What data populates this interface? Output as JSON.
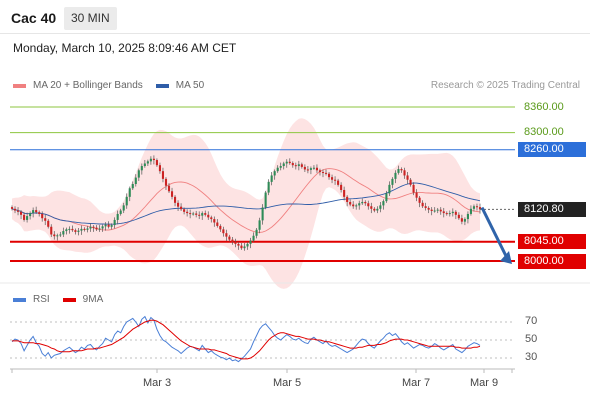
{
  "header": {
    "instrument": "Cac 40",
    "timeframe": "30 MIN"
  },
  "datetime": "Monday, March 10, 2025 8:09:46 AM CET",
  "legend": {
    "bollinger_label": "MA 20 + Bollinger Bands",
    "ma50_label": "MA 50",
    "credit": "Research © 2025 Trading Central"
  },
  "rsi_legend": {
    "rsi_label": "RSI",
    "ma_label": "9MA"
  },
  "colors": {
    "bollinger": "#f08080",
    "band_fill": "#fde3e3",
    "ma50": "#2f5da8",
    "resistance_green": "#8dc63f",
    "pivot_blue": "#2c6fd9",
    "support_red": "#e00000",
    "price_box": "#222222",
    "rsi": "#4a7fd6",
    "rsi_ma": "#e00000",
    "arrow": "#2f64aa",
    "candle_up": "#2e8b57",
    "candle_down": "#cc2222"
  },
  "chart_data": [
    {
      "type": "candlestick",
      "title": "",
      "ylim": [
        7960,
        8380
      ],
      "x_ticks": [
        "Mar 3",
        "Mar 5",
        "Mar 7",
        "Mar 9"
      ],
      "levels": [
        {
          "label": "8360.00",
          "value": 8360,
          "kind": "resistance"
        },
        {
          "label": "8300.00",
          "value": 8300,
          "kind": "resistance"
        },
        {
          "label": "8260.00",
          "value": 8260,
          "kind": "pivot"
        },
        {
          "label": "8045.00",
          "value": 8045,
          "kind": "support"
        },
        {
          "label": "8000.00",
          "value": 8000,
          "kind": "support"
        }
      ],
      "last_price": {
        "label": "8120.80",
        "value": 8120.8
      },
      "forecast_arrow": {
        "from": 8125,
        "to": 8000,
        "direction": "down"
      },
      "series": [
        {
          "name": "MA 20 + Bollinger Bands"
        },
        {
          "name": "MA 50"
        }
      ],
      "close": [
        8122,
        8118,
        8115,
        8108,
        8096,
        8105,
        8112,
        8119,
        8114,
        8110,
        8100,
        8094,
        8080,
        8062,
        8058,
        8060,
        8062,
        8070,
        8074,
        8075,
        8072,
        8068,
        8071,
        8075,
        8073,
        8076,
        8080,
        8078,
        8074,
        8076,
        8081,
        8085,
        8080,
        8084,
        8096,
        8110,
        8118,
        8130,
        8150,
        8170,
        8180,
        8195,
        8212,
        8222,
        8228,
        8233,
        8239,
        8236,
        8224,
        8210,
        8192,
        8176,
        8163,
        8150,
        8136,
        8127,
        8121,
        8115,
        8112,
        8110,
        8111,
        8108,
        8106,
        8112,
        8108,
        8102,
        8098,
        8090,
        8082,
        8074,
        8065,
        8057,
        8050,
        8044,
        8040,
        8036,
        8030,
        8034,
        8040,
        8048,
        8059,
        8073,
        8095,
        8125,
        8160,
        8185,
        8200,
        8210,
        8218,
        8222,
        8228,
        8232,
        8229,
        8224,
        8222,
        8226,
        8220,
        8214,
        8213,
        8217,
        8218,
        8212,
        8208,
        8206,
        8204,
        8196,
        8190,
        8188,
        8178,
        8166,
        8150,
        8138,
        8132,
        8128,
        8130,
        8135,
        8138,
        8135,
        8128,
        8122,
        8118,
        8122,
        8130,
        8140,
        8158,
        8178,
        8192,
        8206,
        8215,
        8212,
        8200,
        8190,
        8178,
        8160,
        8148,
        8136,
        8128,
        8124,
        8120,
        8117,
        8118,
        8120,
        8116,
        8112,
        8110,
        8112,
        8115,
        8108,
        8100,
        8092,
        8098,
        8110,
        8122,
        8128,
        8126,
        8120.8
      ]
    },
    {
      "type": "line",
      "title": "",
      "ylim": [
        20,
        80
      ],
      "y_ticks": [
        70,
        50,
        30
      ],
      "series": [
        {
          "name": "RSI",
          "values": [
            48,
            51,
            50,
            46,
            38,
            44,
            50,
            54,
            47,
            43,
            35,
            32,
            36,
            30,
            33,
            34,
            35,
            38,
            40,
            42,
            39,
            36,
            38,
            42,
            40,
            44,
            45,
            41,
            39,
            43,
            46,
            52,
            50,
            48,
            56,
            60,
            58,
            65,
            70,
            72,
            74,
            70,
            65,
            73,
            76,
            69,
            75,
            72,
            62,
            55,
            50,
            48,
            45,
            42,
            40,
            38,
            35,
            38,
            41,
            43,
            42,
            40,
            38,
            44,
            40,
            36,
            38,
            35,
            33,
            31,
            30,
            28,
            30,
            27,
            28,
            26,
            29,
            32,
            36,
            40,
            48,
            55,
            62,
            66,
            68,
            64,
            60,
            55,
            52,
            50,
            53,
            56,
            54,
            51,
            50,
            52,
            49,
            47,
            46,
            51,
            53,
            50,
            48,
            46,
            49,
            45,
            43,
            44,
            42,
            40,
            38,
            36,
            38,
            40,
            44,
            48,
            51,
            50,
            46,
            43,
            41,
            45,
            49,
            52,
            56,
            58,
            55,
            57,
            53,
            48,
            45,
            47,
            44,
            41,
            43,
            45,
            44,
            42,
            41,
            43,
            46,
            44,
            41,
            39,
            41,
            43,
            45,
            40,
            38,
            36,
            39,
            43,
            45,
            47,
            46,
            44
          ]
        },
        {
          "name": "9MA",
          "values": [
            49,
            49,
            49,
            48,
            47,
            47,
            47,
            47,
            46,
            46,
            45,
            44,
            43,
            41,
            40,
            38,
            37,
            37,
            37,
            37,
            38,
            38,
            38,
            38,
            39,
            40,
            40,
            40,
            41,
            41,
            42,
            43,
            44,
            45,
            47,
            49,
            51,
            53,
            56,
            59,
            62,
            64,
            66,
            68,
            70,
            71,
            72,
            72,
            71,
            69,
            67,
            64,
            61,
            58,
            55,
            52,
            49,
            47,
            45,
            43,
            42,
            41,
            40,
            40,
            40,
            40,
            39,
            39,
            38,
            37,
            36,
            35,
            33,
            32,
            31,
            30,
            29,
            29,
            29,
            30,
            32,
            35,
            38,
            42,
            46,
            50,
            53,
            55,
            57,
            58,
            58,
            57,
            56,
            55,
            54,
            54,
            53,
            52,
            51,
            51,
            51,
            50,
            50,
            49,
            48,
            48,
            47,
            46,
            45,
            44,
            43,
            42,
            41,
            41,
            41,
            42,
            42,
            43,
            44,
            44,
            44,
            45,
            45,
            46,
            47,
            49,
            50,
            51,
            51,
            51,
            50,
            50,
            49,
            48,
            47,
            46,
            45,
            44,
            43,
            43,
            43,
            43,
            43,
            43,
            43,
            43,
            43,
            42,
            42,
            41,
            41,
            41,
            41,
            42,
            42,
            43
          ]
        }
      ]
    }
  ]
}
